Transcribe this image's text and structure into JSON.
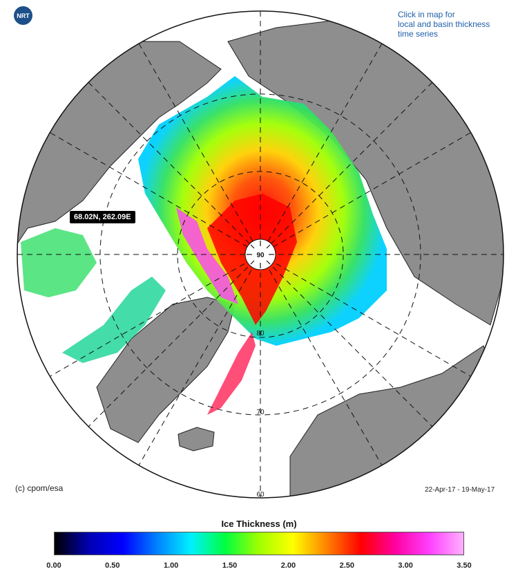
{
  "badge": {
    "label": "NRT"
  },
  "help_text": "Click in map for\nlocal and basin thickness\ntime series",
  "map": {
    "latitude_labels": [
      "80",
      "70",
      "60"
    ],
    "pole_label": "90",
    "hover_tooltip": "68.02N, 262.09E",
    "credit": "(c) cpom/esa",
    "date_range": "22-Apr-17 - 19-May-17",
    "colors": {
      "land": "#8e8e8e",
      "ocean": "#ffffff",
      "coast": "#222222",
      "ice_core": "#ff1e1e"
    }
  },
  "legend": {
    "title": "Ice Thickness (m)",
    "ticks": [
      "0.00",
      "0.50",
      "1.00",
      "1.50",
      "2.00",
      "2.50",
      "3.00",
      "3.50"
    ],
    "range": [
      0,
      3.5
    ],
    "colormap": [
      "#000000",
      "#0000b0",
      "#0000ff",
      "#0080ff",
      "#00f0ff",
      "#00ff40",
      "#a0ff00",
      "#ffff00",
      "#ff8000",
      "#ff0000",
      "#ff00a0",
      "#ff40ff",
      "#ffb0ff"
    ]
  }
}
